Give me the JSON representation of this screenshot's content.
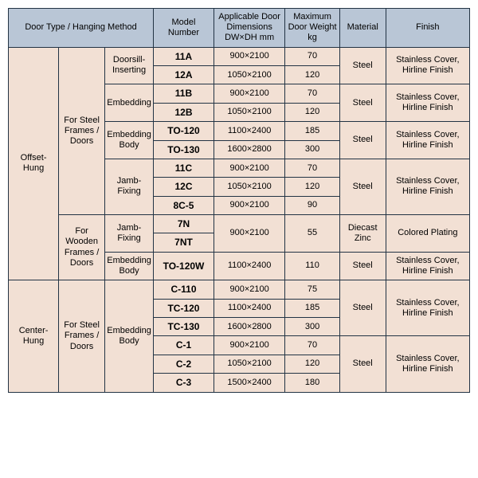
{
  "header": {
    "door_type": "Door Type / Hanging Method",
    "model": "Model Number",
    "dim": "Applicable Door Dimensions DW×DH mm",
    "weight": "Maximum Door Weight kg",
    "material": "Material",
    "finish": "Finish"
  },
  "labels": {
    "offset_hung": "Offset-Hung",
    "center_hung": "Center-Hung",
    "steel_frames": "For Steel Frames / Doors",
    "wooden_frames": "For Wooden Frames / Doors",
    "doorsill_inserting": "Doorsill-Inserting",
    "embedding": "Embedding",
    "embedding_body": "Embedding Body",
    "jamb_fixing": "Jamb-Fixing"
  },
  "materials": {
    "steel": "Steel",
    "diecast_zinc": "Diecast Zinc"
  },
  "finishes": {
    "stainless": "Stainless Cover, Hirline Finish",
    "colored": "Colored Plating"
  },
  "rows": {
    "r0": {
      "model": "11A",
      "dim": "900×2100",
      "weight": "70"
    },
    "r1": {
      "model": "12A",
      "dim": "1050×2100",
      "weight": "120"
    },
    "r2": {
      "model": "11B",
      "dim": "900×2100",
      "weight": "70"
    },
    "r3": {
      "model": "12B",
      "dim": "1050×2100",
      "weight": "120"
    },
    "r4": {
      "model": "TO-120",
      "dim": "1100×2400",
      "weight": "185"
    },
    "r5": {
      "model": "TO-130",
      "dim": "1600×2800",
      "weight": "300"
    },
    "r6": {
      "model": "11C",
      "dim": "900×2100",
      "weight": "70"
    },
    "r7": {
      "model": "12C",
      "dim": "1050×2100",
      "weight": "120"
    },
    "r8": {
      "model": "8C-5",
      "dim": "900×2100",
      "weight": "90"
    },
    "r9": {
      "model": "7N",
      "dim": "900×2100",
      "weight": "55"
    },
    "r10": {
      "model": "7NT"
    },
    "r11": {
      "model": "TO-120W",
      "dim": "1100×2400",
      "weight": "110"
    },
    "r12": {
      "model": "C-110",
      "dim": "900×2100",
      "weight": "75"
    },
    "r13": {
      "model": "TC-120",
      "dim": "1100×2400",
      "weight": "185"
    },
    "r14": {
      "model": "TC-130",
      "dim": "1600×2800",
      "weight": "300"
    },
    "r15": {
      "model": "C-1",
      "dim": "900×2100",
      "weight": "70"
    },
    "r16": {
      "model": "C-2",
      "dim": "1050×2100",
      "weight": "120"
    },
    "r17": {
      "model": "C-3",
      "dim": "1500×2400",
      "weight": "180"
    }
  },
  "style": {
    "header_bg": "#b9c6d6",
    "body_bg": "#f2e0d4",
    "border_color": "#223344",
    "font_size_body": 11,
    "font_size_model": 12
  }
}
